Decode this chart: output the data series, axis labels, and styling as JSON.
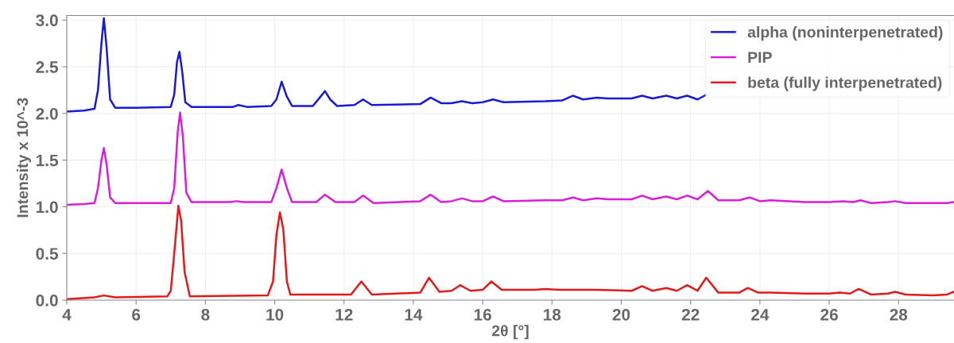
{
  "chart_data": {
    "type": "line",
    "xlabel": "2θ [°]",
    "ylabel": "Intensity x 10^-3",
    "xlim": [
      4,
      29.6
    ],
    "xticks": [
      4,
      6,
      8,
      10,
      12,
      14,
      16,
      18,
      20,
      22,
      24,
      26,
      28
    ],
    "ylim": [
      0,
      3.05
    ],
    "yticks": [
      {
        "value": 0,
        "label": "0.0"
      },
      0.5,
      {
        "value": 1,
        "label": "1.0"
      },
      1.5,
      {
        "value": 2,
        "label": "2.0"
      },
      2.5,
      {
        "value": 3,
        "label": "3.0"
      }
    ],
    "grid": true,
    "legend": "top right",
    "marker": "none",
    "line_style": "solid",
    "series": [
      {
        "name": "alpha (noninterpenetrated)",
        "color": "#1a1ad6",
        "x": [
          4,
          4.5,
          4.8,
          4.9,
          5.0,
          5.07,
          5.15,
          5.25,
          5.4,
          6.0,
          7.0,
          7.1,
          7.18,
          7.25,
          7.33,
          7.42,
          7.6,
          8.8,
          8.95,
          9.2,
          9.9,
          10.05,
          10.2,
          10.35,
          10.5,
          11.1,
          11.3,
          11.45,
          11.6,
          11.8,
          12.3,
          12.55,
          12.8,
          14.2,
          14.5,
          14.8,
          15.1,
          15.4,
          15.7,
          16.0,
          16.3,
          16.6,
          17.8,
          18.3,
          18.6,
          18.9,
          19.3,
          19.6,
          20.3,
          20.6,
          20.9,
          21.3,
          21.6,
          21.9,
          22.2,
          22.45
        ],
        "values": [
          2.02,
          2.03,
          2.05,
          2.25,
          2.75,
          3.02,
          2.7,
          2.15,
          2.06,
          2.06,
          2.07,
          2.2,
          2.55,
          2.66,
          2.45,
          2.12,
          2.07,
          2.07,
          2.09,
          2.07,
          2.08,
          2.15,
          2.34,
          2.18,
          2.08,
          2.08,
          2.17,
          2.24,
          2.15,
          2.08,
          2.09,
          2.15,
          2.09,
          2.1,
          2.17,
          2.11,
          2.11,
          2.13,
          2.11,
          2.12,
          2.15,
          2.12,
          2.13,
          2.14,
          2.19,
          2.15,
          2.17,
          2.16,
          2.16,
          2.19,
          2.16,
          2.19,
          2.16,
          2.19,
          2.15,
          2.2
        ]
      },
      {
        "name": "PIP",
        "color": "#d91ed9",
        "x": [
          4,
          4.5,
          4.8,
          4.9,
          5.0,
          5.07,
          5.15,
          5.25,
          5.4,
          6.0,
          7.0,
          7.1,
          7.2,
          7.27,
          7.35,
          7.45,
          7.6,
          8.7,
          8.9,
          9.1,
          9.9,
          10.05,
          10.2,
          10.35,
          10.5,
          11.2,
          11.45,
          11.75,
          12.3,
          12.55,
          12.85,
          14.2,
          14.5,
          14.8,
          15.1,
          15.4,
          15.7,
          16.0,
          16.3,
          16.6,
          17.8,
          18.3,
          18.6,
          18.9,
          19.3,
          19.6,
          20.3,
          20.6,
          20.9,
          21.3,
          21.6,
          21.9,
          22.2,
          22.5,
          22.8,
          23.4,
          23.7,
          24.0,
          24.3,
          25.3,
          26.0,
          26.4,
          26.7,
          26.9,
          27.2,
          27.7,
          27.9,
          28.2,
          29.0,
          29.4,
          29.6
        ],
        "values": [
          1.02,
          1.03,
          1.04,
          1.2,
          1.5,
          1.63,
          1.45,
          1.1,
          1.04,
          1.04,
          1.04,
          1.2,
          1.8,
          2.01,
          1.75,
          1.15,
          1.05,
          1.05,
          1.06,
          1.05,
          1.05,
          1.2,
          1.4,
          1.2,
          1.05,
          1.05,
          1.13,
          1.05,
          1.05,
          1.12,
          1.04,
          1.06,
          1.13,
          1.05,
          1.06,
          1.09,
          1.06,
          1.06,
          1.11,
          1.06,
          1.07,
          1.07,
          1.1,
          1.07,
          1.09,
          1.08,
          1.08,
          1.12,
          1.08,
          1.11,
          1.08,
          1.12,
          1.08,
          1.17,
          1.07,
          1.07,
          1.1,
          1.06,
          1.07,
          1.05,
          1.05,
          1.06,
          1.05,
          1.07,
          1.04,
          1.05,
          1.06,
          1.04,
          1.04,
          1.04,
          1.05
        ]
      },
      {
        "name": "beta (fully interpenetrated)",
        "color": "#e31a1a",
        "x": [
          4,
          4.8,
          5.07,
          5.4,
          6.9,
          7.0,
          7.1,
          7.22,
          7.3,
          7.4,
          7.55,
          9.8,
          9.95,
          10.05,
          10.15,
          10.25,
          10.35,
          10.45,
          12.2,
          12.5,
          12.8,
          14.2,
          14.45,
          14.75,
          15.1,
          15.35,
          15.65,
          16.0,
          16.25,
          16.55,
          17.5,
          17.8,
          18.2,
          19.3,
          20.3,
          20.6,
          20.9,
          21.3,
          21.6,
          21.9,
          22.2,
          22.45,
          22.8,
          23.4,
          23.65,
          23.95,
          24.3,
          25.3,
          26.0,
          26.3,
          26.6,
          26.85,
          27.2,
          27.7,
          27.9,
          28.2,
          29.0,
          29.4,
          29.6
        ],
        "values": [
          0.01,
          0.03,
          0.05,
          0.03,
          0.04,
          0.1,
          0.5,
          1.01,
          0.85,
          0.3,
          0.04,
          0.05,
          0.2,
          0.7,
          0.94,
          0.75,
          0.2,
          0.06,
          0.06,
          0.2,
          0.06,
          0.08,
          0.24,
          0.09,
          0.1,
          0.16,
          0.1,
          0.11,
          0.2,
          0.11,
          0.11,
          0.12,
          0.11,
          0.11,
          0.1,
          0.15,
          0.1,
          0.13,
          0.1,
          0.16,
          0.1,
          0.24,
          0.08,
          0.08,
          0.13,
          0.08,
          0.08,
          0.07,
          0.07,
          0.08,
          0.07,
          0.12,
          0.06,
          0.07,
          0.09,
          0.06,
          0.05,
          0.06,
          0.09
        ]
      }
    ]
  }
}
